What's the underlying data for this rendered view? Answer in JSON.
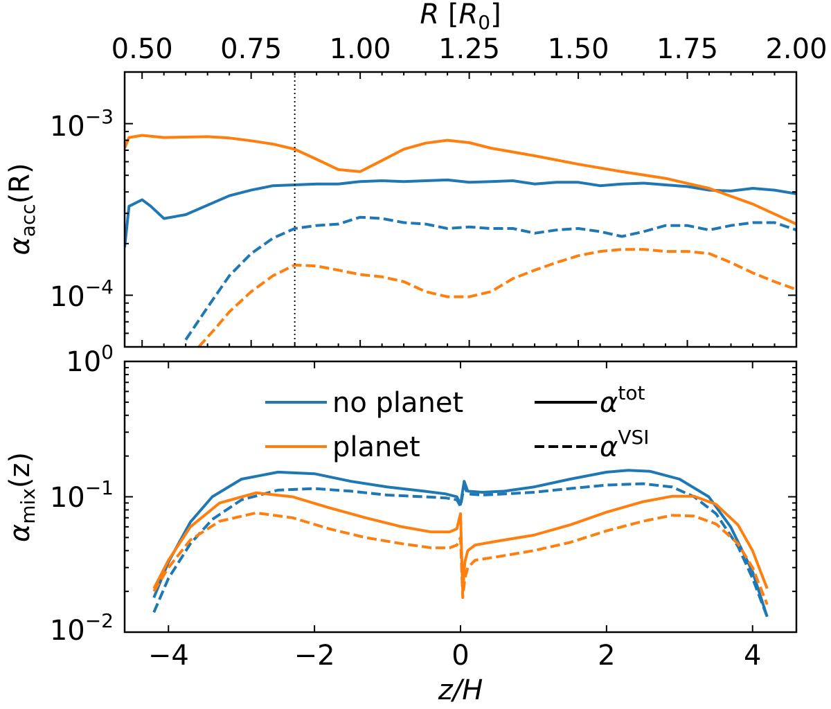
{
  "colors": {
    "no_planet": "#1f77b4",
    "planet": "#ff7f0e",
    "axis": "#000000",
    "background": "#ffffff"
  },
  "chart_data": [
    {
      "type": "line",
      "panel": "top",
      "title": "",
      "xlabel": "R [R_0]",
      "xlabel_parts": {
        "italic": "R",
        "open": " [",
        "sym": "R",
        "sub": "0",
        "close": "]"
      },
      "ylabel": "α_acc(R)",
      "ylabel_parts": {
        "sym": "α",
        "sub": "acc",
        "rest": "(R)"
      },
      "yscale": "log",
      "xlim": [
        0.46,
        2.0
      ],
      "ylim": [
        5e-05,
        0.002
      ],
      "xticks": [
        0.5,
        0.75,
        1.0,
        1.25,
        1.5,
        1.75,
        2.0
      ],
      "xtick_labels": [
        "0.50",
        "0.75",
        "1.00",
        "1.25",
        "1.50",
        "1.75",
        "2.00"
      ],
      "ytick_labels": [
        {
          "value": 0.001,
          "base": "10",
          "exp": "−3"
        },
        {
          "value": 0.0001,
          "base": "10",
          "exp": "−4"
        }
      ],
      "vline": {
        "x": 0.85,
        "style": "dotted"
      },
      "series": [
        {
          "name": "no planet α_tot",
          "color_key": "no_planet",
          "dash": "solid",
          "x": [
            0.46,
            0.47,
            0.5,
            0.52,
            0.55,
            0.6,
            0.65,
            0.7,
            0.75,
            0.8,
            0.85,
            0.9,
            0.95,
            1.0,
            1.05,
            1.1,
            1.15,
            1.2,
            1.25,
            1.3,
            1.35,
            1.4,
            1.45,
            1.5,
            1.55,
            1.6,
            1.65,
            1.7,
            1.75,
            1.8,
            1.85,
            1.9,
            1.95,
            2.0
          ],
          "y": [
            0.00019,
            0.00033,
            0.00036,
            0.00033,
            0.00028,
            0.000295,
            0.000335,
            0.00038,
            0.00041,
            0.000435,
            0.00044,
            0.000445,
            0.000445,
            0.00046,
            0.000465,
            0.00046,
            0.000465,
            0.00047,
            0.000455,
            0.00046,
            0.000465,
            0.000445,
            0.000455,
            0.000455,
            0.000435,
            0.000445,
            0.00045,
            0.00044,
            0.00043,
            0.00041,
            0.000405,
            0.00042,
            0.00041,
            0.00039
          ]
        },
        {
          "name": "planet α_tot",
          "color_key": "planet",
          "dash": "solid",
          "x": [
            0.46,
            0.47,
            0.5,
            0.55,
            0.6,
            0.65,
            0.7,
            0.75,
            0.8,
            0.85,
            0.9,
            0.95,
            1.0,
            1.05,
            1.1,
            1.15,
            1.2,
            1.25,
            1.3,
            1.4,
            1.5,
            1.6,
            1.7,
            1.8,
            1.9,
            2.0
          ],
          "y": [
            0.00072,
            0.00083,
            0.000855,
            0.00083,
            0.000835,
            0.00084,
            0.000825,
            0.000795,
            0.00076,
            0.00071,
            0.00062,
            0.00054,
            0.000525,
            0.00061,
            0.00071,
            0.00077,
            0.0008,
            0.000775,
            0.00072,
            0.00065,
            0.00058,
            0.000525,
            0.00048,
            0.00042,
            0.00034,
            0.00026
          ]
        },
        {
          "name": "no planet α_VSI",
          "color_key": "no_planet",
          "dash": "dashed",
          "x": [
            0.6,
            0.65,
            0.7,
            0.75,
            0.8,
            0.85,
            0.9,
            0.95,
            1.0,
            1.05,
            1.1,
            1.15,
            1.2,
            1.25,
            1.3,
            1.35,
            1.4,
            1.45,
            1.5,
            1.55,
            1.6,
            1.65,
            1.7,
            1.75,
            1.8,
            1.85,
            1.9,
            1.95,
            2.0
          ],
          "y": [
            5.5e-05,
            8.5e-05,
            0.00013,
            0.000175,
            0.000215,
            0.000245,
            0.000255,
            0.00026,
            0.000285,
            0.00028,
            0.000265,
            0.00026,
            0.000245,
            0.00025,
            0.000245,
            0.000245,
            0.00023,
            0.00024,
            0.000245,
            0.000235,
            0.00022,
            0.000235,
            0.000255,
            0.000255,
            0.00024,
            0.000255,
            0.000265,
            0.000265,
            0.00024
          ]
        },
        {
          "name": "planet α_VSI",
          "color_key": "planet",
          "dash": "dashed",
          "x": [
            0.63,
            0.67,
            0.7,
            0.75,
            0.8,
            0.85,
            0.9,
            0.95,
            1.0,
            1.05,
            1.1,
            1.15,
            1.2,
            1.25,
            1.3,
            1.35,
            1.4,
            1.45,
            1.5,
            1.55,
            1.6,
            1.65,
            1.7,
            1.75,
            1.8,
            1.85,
            1.9,
            1.95,
            2.0
          ],
          "y": [
            5e-05,
            6.5e-05,
            8e-05,
            0.000105,
            0.00013,
            0.00015,
            0.000148,
            0.00014,
            0.000132,
            0.000128,
            0.00012,
            0.000105,
            9.8e-05,
            9.8e-05,
            0.000105,
            0.000125,
            0.00014,
            0.000155,
            0.00017,
            0.00018,
            0.000185,
            0.000185,
            0.00018,
            0.00018,
            0.000175,
            0.000155,
            0.000135,
            0.00012,
            0.000108
          ]
        }
      ]
    },
    {
      "type": "line",
      "panel": "bottom",
      "title": "",
      "xlabel": "z/H",
      "ylabel": "α_mix(z)",
      "ylabel_parts": {
        "sym": "α",
        "sub": "mix",
        "rest": "(z)"
      },
      "yscale": "log",
      "xlim": [
        -4.6,
        4.6
      ],
      "ylim": [
        0.01,
        1.0
      ],
      "xticks": [
        -4,
        -2,
        0,
        2,
        4
      ],
      "xtick_labels": [
        "−4",
        "−2",
        "0",
        "2",
        "4"
      ],
      "ytick_labels": [
        {
          "value": 1.0,
          "base": "10",
          "exp": "0"
        },
        {
          "value": 0.1,
          "base": "10",
          "exp": "−1"
        },
        {
          "value": 0.01,
          "base": "10",
          "exp": "−2"
        }
      ],
      "legend": {
        "placement": "upper-center",
        "entries": [
          {
            "label": "no planet",
            "color_key": "no_planet",
            "dash": "solid"
          },
          {
            "label": "planet",
            "color_key": "planet",
            "dash": "solid"
          },
          {
            "sym": "α",
            "sup": "tot",
            "color_key": "axis",
            "dash": "solid"
          },
          {
            "sym": "α",
            "sup": "VSI",
            "color_key": "axis",
            "dash": "dashed"
          }
        ]
      },
      "series": [
        {
          "name": "no planet α_tot",
          "color_key": "no_planet",
          "dash": "solid",
          "x": [
            -4.2,
            -4.0,
            -3.7,
            -3.4,
            -3.0,
            -2.5,
            -2.0,
            -1.5,
            -1.0,
            -0.5,
            -0.2,
            -0.05,
            0.0,
            0.05,
            0.1,
            0.3,
            0.6,
            1.0,
            1.5,
            2.0,
            2.3,
            2.6,
            3.0,
            3.4,
            3.7,
            4.0,
            4.2
          ],
          "y": [
            0.018,
            0.033,
            0.065,
            0.1,
            0.135,
            0.152,
            0.148,
            0.13,
            0.118,
            0.11,
            0.105,
            0.1,
            0.088,
            0.13,
            0.11,
            0.108,
            0.11,
            0.118,
            0.135,
            0.152,
            0.157,
            0.154,
            0.135,
            0.1,
            0.06,
            0.028,
            0.013
          ]
        },
        {
          "name": "no planet α_VSI",
          "color_key": "no_planet",
          "dash": "dashed",
          "x": [
            -4.2,
            -4.0,
            -3.7,
            -3.4,
            -3.0,
            -2.5,
            -2.0,
            -1.5,
            -1.0,
            -0.5,
            -0.2,
            -0.05,
            0.0,
            0.05,
            0.1,
            0.3,
            0.6,
            1.0,
            1.5,
            2.0,
            2.5,
            2.9,
            3.2,
            3.5,
            3.8,
            4.0,
            4.2
          ],
          "y": [
            0.014,
            0.025,
            0.045,
            0.068,
            0.095,
            0.112,
            0.115,
            0.11,
            0.103,
            0.1,
            0.098,
            0.095,
            0.085,
            0.12,
            0.105,
            0.103,
            0.105,
            0.108,
            0.115,
            0.122,
            0.125,
            0.118,
            0.1,
            0.075,
            0.043,
            0.025,
            0.013
          ]
        },
        {
          "name": "planet α_tot",
          "color_key": "planet",
          "dash": "solid",
          "x": [
            -4.2,
            -4.0,
            -3.7,
            -3.3,
            -2.8,
            -2.3,
            -1.8,
            -1.3,
            -0.8,
            -0.4,
            -0.15,
            -0.05,
            0.0,
            0.03,
            0.06,
            0.1,
            0.2,
            0.5,
            1.0,
            1.5,
            2.0,
            2.5,
            2.9,
            3.2,
            3.5,
            3.8,
            4.0,
            4.2
          ],
          "y": [
            0.021,
            0.034,
            0.06,
            0.09,
            0.107,
            0.1,
            0.083,
            0.07,
            0.06,
            0.055,
            0.055,
            0.058,
            0.075,
            0.02,
            0.033,
            0.04,
            0.044,
            0.047,
            0.052,
            0.062,
            0.077,
            0.092,
            0.101,
            0.101,
            0.088,
            0.062,
            0.04,
            0.021
          ]
        },
        {
          "name": "planet α_VSI",
          "color_key": "planet",
          "dash": "dashed",
          "x": [
            -4.2,
            -4.0,
            -3.7,
            -3.3,
            -2.8,
            -2.3,
            -1.8,
            -1.3,
            -0.8,
            -0.4,
            -0.15,
            -0.05,
            0.0,
            0.03,
            0.06,
            0.1,
            0.2,
            0.5,
            1.0,
            1.5,
            2.0,
            2.5,
            2.9,
            3.2,
            3.5,
            3.8,
            4.0,
            4.2
          ],
          "y": [
            0.02,
            0.03,
            0.048,
            0.066,
            0.076,
            0.07,
            0.058,
            0.05,
            0.045,
            0.042,
            0.042,
            0.044,
            0.05,
            0.018,
            0.025,
            0.03,
            0.034,
            0.036,
            0.04,
            0.046,
            0.056,
            0.066,
            0.073,
            0.072,
            0.063,
            0.045,
            0.03,
            0.016
          ]
        }
      ]
    }
  ]
}
